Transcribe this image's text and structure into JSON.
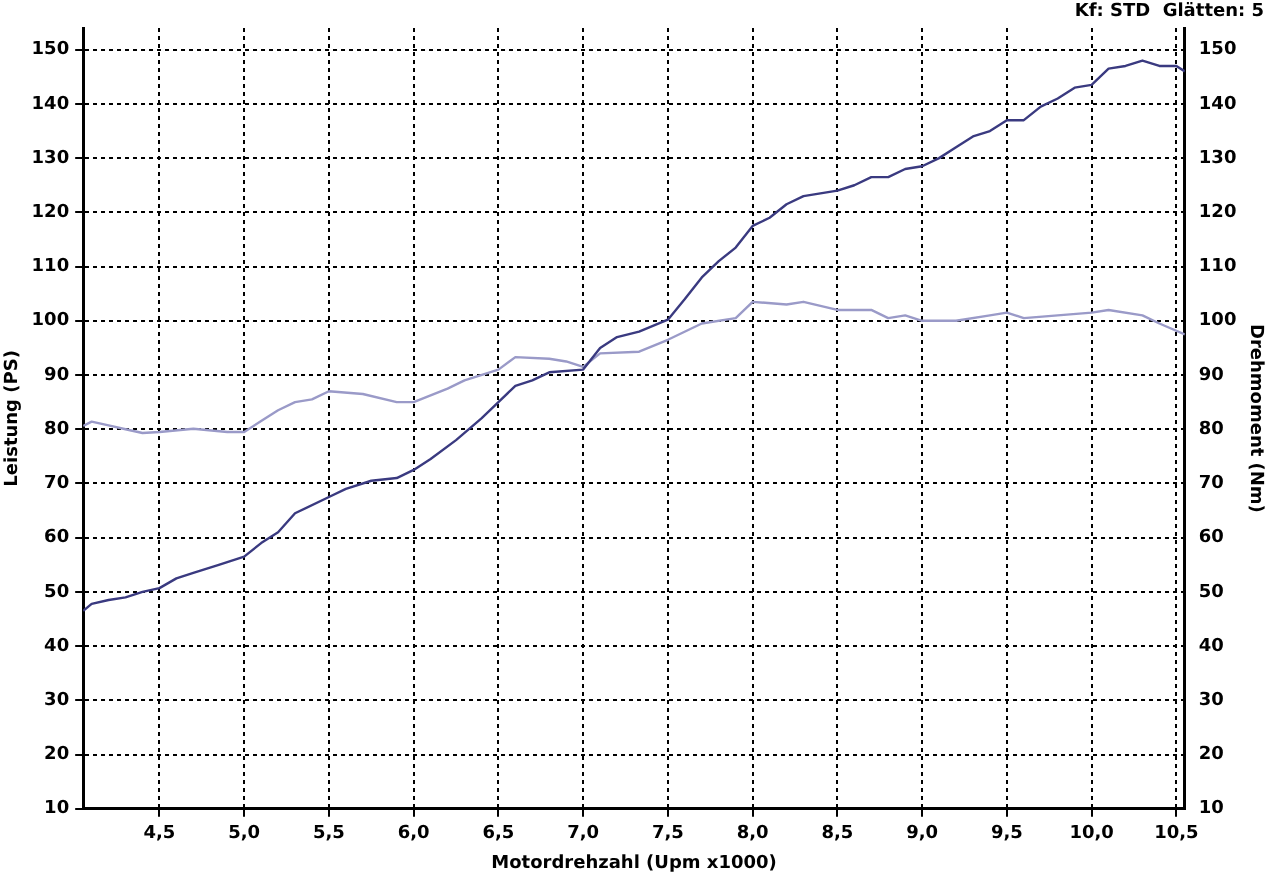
{
  "chart_data": {
    "type": "line",
    "xlabel": "Motordrehzahl (Upm x1000)",
    "ylabel": "Leistung (PS)",
    "y2label": "Drehmoment (Nm)",
    "annotations": [
      "Kf: STD  Glätten: 5"
    ],
    "xlim": [
      4.05,
      10.55
    ],
    "xticks": [
      {
        "value": 4.5,
        "label": "4,5"
      },
      {
        "value": 5,
        "label": "5,0"
      },
      {
        "value": 5.5,
        "label": "5,5"
      },
      {
        "value": 6,
        "label": "6,0"
      },
      {
        "value": 6.5,
        "label": "6,5"
      },
      {
        "value": 7,
        "label": "7,0"
      },
      {
        "value": 7.5,
        "label": "7,5"
      },
      {
        "value": 8,
        "label": "8,0"
      },
      {
        "value": 8.5,
        "label": "8,5"
      },
      {
        "value": 9,
        "label": "9,0"
      },
      {
        "value": 9.5,
        "label": "9,5"
      },
      {
        "value": 10,
        "label": "10,0"
      },
      {
        "value": 10.5,
        "label": "10,5"
      }
    ],
    "ylim": [
      10,
      154
    ],
    "yticks": [
      10,
      20,
      30,
      40,
      50,
      60,
      70,
      80,
      90,
      100,
      110,
      120,
      130,
      140,
      150
    ],
    "y2lim": [
      10,
      154
    ],
    "y2ticks": [
      10,
      20,
      30,
      40,
      50,
      60,
      70,
      80,
      90,
      100,
      110,
      120,
      130,
      140,
      150
    ],
    "grid": true,
    "legend": false,
    "marker": "none",
    "line_style": "solid",
    "series": [
      {
        "color": "#3a3a80",
        "x": [
          4.05,
          4.1,
          4.2,
          4.3,
          4.4,
          4.5,
          4.6,
          4.7,
          4.85,
          5.0,
          5.1,
          5.2,
          5.3,
          5.5,
          5.6,
          5.75,
          5.9,
          6.0,
          6.1,
          6.25,
          6.4,
          6.5,
          6.6,
          6.7,
          6.8,
          7.0,
          7.1,
          7.2,
          7.33,
          7.5,
          7.6,
          7.7,
          7.8,
          7.9,
          8.0,
          8.1,
          8.2,
          8.3,
          8.4,
          8.5,
          8.6,
          8.7,
          8.8,
          8.9,
          9.0,
          9.1,
          9.2,
          9.3,
          9.4,
          9.5,
          9.6,
          9.7,
          9.8,
          9.9,
          10.0,
          10.1,
          10.2,
          10.3,
          10.4,
          10.5,
          10.55
        ],
        "values": [
          46.5,
          47.8,
          48.5,
          49,
          50,
          50.7,
          52.5,
          53.5,
          55,
          56.5,
          59,
          61,
          64.5,
          67.5,
          69,
          70.5,
          71,
          72.5,
          74.5,
          78,
          82,
          85,
          88,
          89,
          90.5,
          91,
          95,
          97,
          98,
          100.2,
          104,
          108,
          111,
          113.5,
          117.5,
          119,
          121.5,
          123,
          123.5,
          124,
          125,
          126.5,
          126.5,
          128,
          128.5,
          130,
          132,
          134,
          135,
          137,
          137,
          139.5,
          141,
          143,
          143.5,
          146.5,
          147,
          148,
          147,
          147,
          146
        ]
      },
      {
        "color": "#9a9ac8",
        "x": [
          4.05,
          4.1,
          4.2,
          4.3,
          4.4,
          4.5,
          4.7,
          4.9,
          5.0,
          5.1,
          5.2,
          5.3,
          5.4,
          5.5,
          5.7,
          5.9,
          6.0,
          6.2,
          6.3,
          6.5,
          6.6,
          6.8,
          6.9,
          7.0,
          7.1,
          7.33,
          7.5,
          7.7,
          7.9,
          8.0,
          8.2,
          8.3,
          8.5,
          8.7,
          8.8,
          8.9,
          9.0,
          9.2,
          9.4,
          9.5,
          9.6,
          9.8,
          10.0,
          10.1,
          10.3,
          10.4,
          10.55
        ],
        "values": [
          80.6,
          81.4,
          80.7,
          80,
          79.3,
          79.5,
          80.1,
          79.5,
          79.5,
          81.5,
          83.5,
          85,
          85.5,
          87,
          86.5,
          85,
          85,
          87.5,
          89,
          91,
          93.3,
          93,
          92.5,
          91.5,
          94,
          94.3,
          96.5,
          99.5,
          100.5,
          103.5,
          103,
          103.5,
          102,
          102,
          100.5,
          101,
          100,
          100,
          101,
          101.5,
          100.5,
          101,
          101.5,
          102,
          101,
          99.5,
          97.5
        ]
      }
    ]
  }
}
